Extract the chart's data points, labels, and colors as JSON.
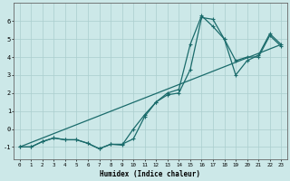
{
  "xlabel": "Humidex (Indice chaleur)",
  "xlim": [
    -0.5,
    23.5
  ],
  "ylim": [
    -1.7,
    7.0
  ],
  "xticks": [
    0,
    1,
    2,
    3,
    4,
    5,
    6,
    7,
    8,
    9,
    10,
    11,
    12,
    13,
    14,
    15,
    16,
    17,
    18,
    19,
    20,
    21,
    22,
    23
  ],
  "yticks": [
    -1,
    0,
    1,
    2,
    3,
    4,
    5,
    6
  ],
  "background_color": "#cce8e8",
  "grid_color": "#aacece",
  "line_color": "#1a6b6b",
  "line1_x": [
    0,
    1,
    2,
    3,
    4,
    5,
    6,
    7,
    8,
    9,
    10,
    11,
    12,
    13,
    14,
    15,
    16,
    17,
    18,
    19,
    20,
    21,
    22,
    23
  ],
  "line1_y": [
    -1.0,
    -1.0,
    -0.7,
    -0.5,
    -0.6,
    -0.6,
    -0.8,
    -1.1,
    -0.85,
    -0.85,
    -0.55,
    0.7,
    1.5,
    1.9,
    2.0,
    3.3,
    6.2,
    6.1,
    5.0,
    3.8,
    4.0,
    4.0,
    5.2,
    4.6
  ],
  "line2_x": [
    0,
    1,
    2,
    3,
    4,
    5,
    6,
    7,
    8,
    9,
    10,
    11,
    12,
    13,
    14,
    15,
    16,
    17,
    18,
    19,
    20,
    21,
    22,
    23
  ],
  "line2_y": [
    -1.0,
    -1.0,
    -0.7,
    -0.5,
    -0.6,
    -0.6,
    -0.8,
    -1.1,
    -0.85,
    -0.9,
    0.0,
    0.8,
    1.5,
    2.0,
    2.2,
    4.7,
    6.3,
    5.7,
    5.0,
    3.0,
    3.8,
    4.1,
    5.3,
    4.7
  ],
  "line3_x": [
    0,
    23
  ],
  "line3_y": [
    -1.0,
    4.7
  ],
  "linewidth": 0.9,
  "marker_size": 3.5
}
